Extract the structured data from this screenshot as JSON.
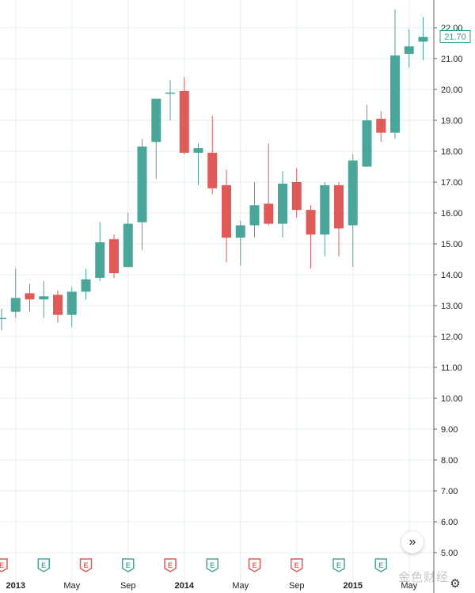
{
  "chart_data": {
    "type": "candlestick",
    "interval": "monthly",
    "ylim": [
      4.6,
      22.6
    ],
    "y_ticks": [
      "5.00",
      "6.00",
      "7.00",
      "8.00",
      "9.00",
      "10.00",
      "11.00",
      "12.00",
      "13.00",
      "14.00",
      "15.00",
      "16.00",
      "17.00",
      "18.00",
      "19.00",
      "20.00",
      "21.00",
      "22.00"
    ],
    "x_ticks": [
      {
        "label": "2013",
        "index": 1,
        "bold": true
      },
      {
        "label": "May",
        "index": 5,
        "bold": false
      },
      {
        "label": "Sep",
        "index": 9,
        "bold": false
      },
      {
        "label": "2014",
        "index": 13,
        "bold": true
      },
      {
        "label": "May",
        "index": 17,
        "bold": false
      },
      {
        "label": "Sep",
        "index": 21,
        "bold": false
      },
      {
        "label": "2015",
        "index": 25,
        "bold": true
      },
      {
        "label": "May",
        "index": 29,
        "bold": false
      }
    ],
    "last_price": "21.70",
    "colors": {
      "up": "#4ba69a",
      "down": "#e05b57",
      "grid": "#e3eef3",
      "axis": "#666666",
      "price_label": "#2e9a8b"
    },
    "candles": [
      {
        "o": 12.6,
        "h": 12.9,
        "l": 12.2,
        "c": 12.6
      },
      {
        "o": 12.8,
        "h": 14.2,
        "l": 12.6,
        "c": 13.25
      },
      {
        "o": 13.4,
        "h": 13.7,
        "l": 12.8,
        "c": 13.2
      },
      {
        "o": 13.2,
        "h": 13.8,
        "l": 12.6,
        "c": 13.3
      },
      {
        "o": 13.35,
        "h": 13.5,
        "l": 12.45,
        "c": 12.7
      },
      {
        "o": 12.7,
        "h": 13.6,
        "l": 12.3,
        "c": 13.45
      },
      {
        "o": 13.45,
        "h": 14.2,
        "l": 13.2,
        "c": 13.85
      },
      {
        "o": 13.9,
        "h": 15.7,
        "l": 13.8,
        "c": 15.05
      },
      {
        "o": 15.15,
        "h": 15.3,
        "l": 13.9,
        "c": 14.05
      },
      {
        "o": 14.25,
        "h": 16.0,
        "l": 14.25,
        "c": 15.65
      },
      {
        "o": 15.7,
        "h": 18.4,
        "l": 14.8,
        "c": 18.15
      },
      {
        "o": 18.3,
        "h": 19.7,
        "l": 17.1,
        "c": 19.7
      },
      {
        "o": 19.9,
        "h": 20.3,
        "l": 19.0,
        "c": 19.9
      },
      {
        "o": 19.95,
        "h": 20.4,
        "l": 17.9,
        "c": 17.95
      },
      {
        "o": 17.95,
        "h": 18.25,
        "l": 16.9,
        "c": 18.1
      },
      {
        "o": 17.95,
        "h": 19.15,
        "l": 16.6,
        "c": 16.8
      },
      {
        "o": 16.9,
        "h": 17.4,
        "l": 14.4,
        "c": 15.2
      },
      {
        "o": 15.2,
        "h": 15.75,
        "l": 14.3,
        "c": 15.6
      },
      {
        "o": 15.6,
        "h": 17.0,
        "l": 15.2,
        "c": 16.25
      },
      {
        "o": 16.3,
        "h": 18.25,
        "l": 15.6,
        "c": 15.65
      },
      {
        "o": 15.65,
        "h": 17.35,
        "l": 15.2,
        "c": 16.95
      },
      {
        "o": 17.0,
        "h": 17.45,
        "l": 15.85,
        "c": 16.1
      },
      {
        "o": 16.1,
        "h": 16.25,
        "l": 14.2,
        "c": 15.3
      },
      {
        "o": 15.3,
        "h": 17.0,
        "l": 14.6,
        "c": 16.9
      },
      {
        "o": 16.9,
        "h": 17.0,
        "l": 14.6,
        "c": 15.5
      },
      {
        "o": 15.6,
        "h": 17.9,
        "l": 14.25,
        "c": 17.7
      },
      {
        "o": 17.5,
        "h": 19.5,
        "l": 17.5,
        "c": 19.0
      },
      {
        "o": 19.05,
        "h": 19.3,
        "l": 18.3,
        "c": 18.6
      },
      {
        "o": 18.6,
        "h": 22.6,
        "l": 18.4,
        "c": 21.1
      },
      {
        "o": 21.15,
        "h": 21.95,
        "l": 20.7,
        "c": 21.4
      },
      {
        "o": 21.55,
        "h": 22.35,
        "l": 20.95,
        "c": 21.7
      }
    ],
    "events": [
      {
        "index": 0,
        "type": "dividend",
        "label": "E"
      },
      {
        "index": 3,
        "type": "earnings",
        "label": "E"
      },
      {
        "index": 6,
        "type": "dividend",
        "label": "E"
      },
      {
        "index": 9,
        "type": "earnings",
        "label": "E"
      },
      {
        "index": 12,
        "type": "dividend",
        "label": "E"
      },
      {
        "index": 15,
        "type": "earnings",
        "label": "E"
      },
      {
        "index": 18,
        "type": "dividend",
        "label": "E"
      },
      {
        "index": 21,
        "type": "dividend",
        "label": "E"
      },
      {
        "index": 24,
        "type": "earnings",
        "label": "E"
      },
      {
        "index": 27,
        "type": "earnings",
        "label": "E"
      }
    ]
  },
  "watermark": "金色财经",
  "icons": {
    "scroll_right": "double-chevron-right-icon",
    "settings": "gear-icon"
  }
}
